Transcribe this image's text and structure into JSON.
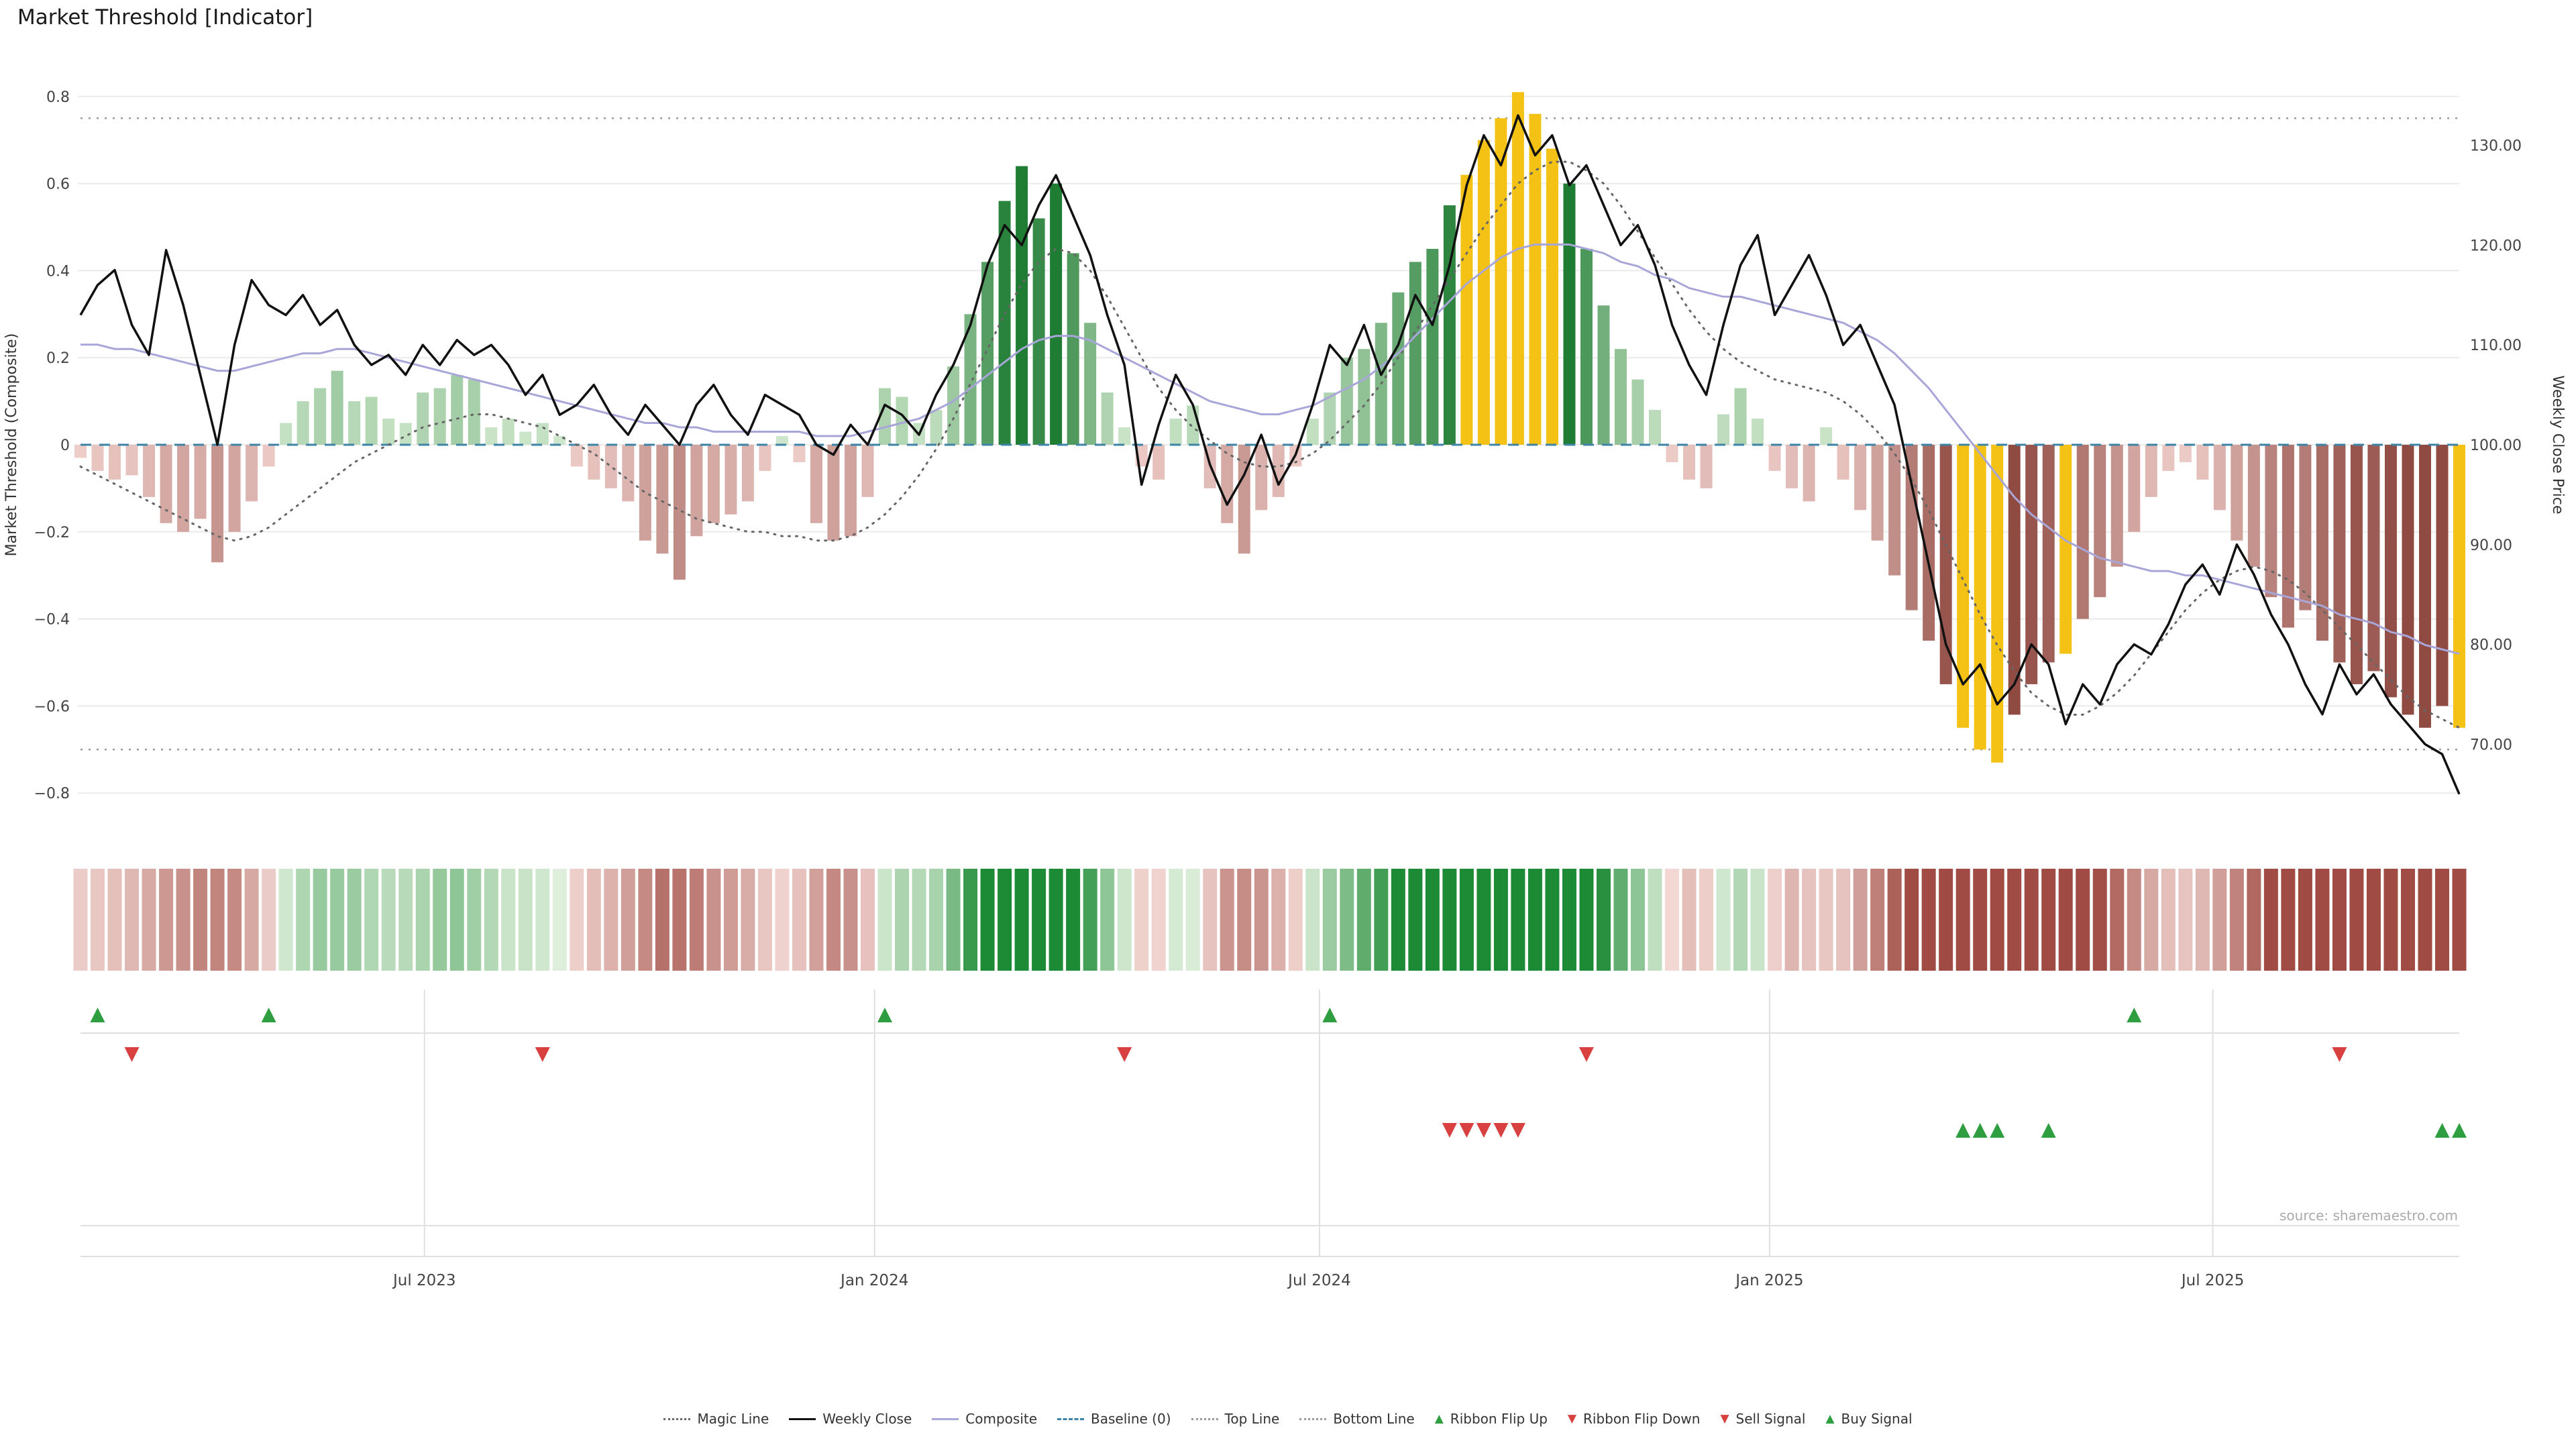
{
  "title": "Market Threshold [Indicator]",
  "source_note": "source: sharemaestro.com",
  "colors": {
    "close_line": "#111111",
    "composite_line": "#a8a6d8",
    "magic_line": "#666666",
    "baseline": "#3d85a8",
    "top_bottom_line": "#9a9a9a",
    "grid": "#ebebeb",
    "panel_grid": "#e0e0e0",
    "green_light": "#d4ead0",
    "green_dark": "#1e7c33",
    "red_light": "#f3d3cf",
    "red_dark": "#8f4a42",
    "gold": "#f3c214",
    "ribbon_green_light": "#e2f1de",
    "ribbon_green_dark": "#1d8a35",
    "ribbon_red_light": "#f6ddd9",
    "ribbon_red_dark": "#a04c44",
    "signal_green": "#2f9e41",
    "signal_red": "#d94040",
    "axis_text": "#333333",
    "tick_text": "#444444"
  },
  "legend": [
    {
      "label": "Magic Line",
      "marker": "dotted-line",
      "color": "#666666"
    },
    {
      "label": "Weekly Close",
      "marker": "solid-line",
      "color": "#111111"
    },
    {
      "label": "Composite",
      "marker": "solid-line",
      "color": "#a8a6d8"
    },
    {
      "label": "Baseline (0)",
      "marker": "dashed-line",
      "color": "#3d85a8"
    },
    {
      "label": "Top Line",
      "marker": "dotted-line",
      "color": "#9a9a9a"
    },
    {
      "label": "Bottom Line",
      "marker": "dotted-line",
      "color": "#9a9a9a"
    },
    {
      "label": "Ribbon Flip Up",
      "marker": "triangle-up",
      "color": "#2f9e41"
    },
    {
      "label": "Ribbon Flip Down",
      "marker": "triangle-down",
      "color": "#d94040"
    },
    {
      "label": "Sell Signal",
      "marker": "triangle-down",
      "color": "#d94040"
    },
    {
      "label": "Buy Signal",
      "marker": "triangle-up",
      "color": "#2f9e41"
    }
  ],
  "chart_data": {
    "type": "mixed",
    "x_unit": "weekly",
    "title": "Market Threshold [Indicator]",
    "left_axis": {
      "label": "Market Threshold (Composite)",
      "ticks": [
        0.8,
        0.6,
        0.4,
        0.2,
        0,
        -0.2,
        -0.4,
        -0.6,
        -0.8
      ],
      "tick_labels": [
        "0.8",
        "0.6",
        "0.4",
        "0.2",
        "0",
        "−0.2",
        "−0.4",
        "−0.6",
        "−0.8"
      ]
    },
    "right_axis": {
      "label": "Weekly Close Price",
      "ticks": [
        130,
        120,
        110,
        100,
        90,
        80,
        70
      ],
      "tick_labels": [
        "130.00",
        "120.00",
        "110.00",
        "100.00",
        "90.00",
        "80.00",
        "70.00"
      ]
    },
    "x_ticks": [
      {
        "w": 20.1,
        "label": "Jul 2023"
      },
      {
        "w": 46.4,
        "label": "Jan 2024"
      },
      {
        "w": 72.4,
        "label": "Jul 2024"
      },
      {
        "w": 98.7,
        "label": "Jan 2025"
      },
      {
        "w": 124.6,
        "label": "Jul 2025"
      }
    ],
    "top_line": 0.75,
    "bottom_line": -0.7,
    "baseline": 0,
    "threshold_bars": [
      -0.03,
      -0.06,
      -0.08,
      -0.07,
      -0.12,
      -0.18,
      -0.2,
      -0.17,
      -0.27,
      -0.2,
      -0.13,
      -0.05,
      0.05,
      0.1,
      0.13,
      0.17,
      0.1,
      0.11,
      0.06,
      0.05,
      0.12,
      0.13,
      0.16,
      0.15,
      0.04,
      0.06,
      0.03,
      0.05,
      0.02,
      -0.05,
      -0.08,
      -0.1,
      -0.13,
      -0.22,
      -0.25,
      -0.31,
      -0.21,
      -0.18,
      -0.16,
      -0.13,
      -0.06,
      0.02,
      -0.04,
      -0.18,
      -0.22,
      -0.21,
      -0.12,
      0.13,
      0.11,
      0.05,
      0.08,
      0.18,
      0.3,
      0.42,
      0.56,
      0.64,
      0.52,
      0.6,
      0.44,
      0.28,
      0.12,
      0.04,
      -0.05,
      -0.08,
      0.06,
      0.09,
      -0.1,
      -0.18,
      -0.25,
      -0.15,
      -0.12,
      -0.05,
      0.06,
      0.12,
      0.2,
      0.22,
      0.28,
      0.35,
      0.42,
      0.45,
      0.55,
      0.62,
      0.7,
      0.75,
      0.81,
      0.76,
      0.68,
      0.6,
      0.45,
      0.32,
      0.22,
      0.15,
      0.08,
      -0.04,
      -0.08,
      -0.1,
      0.07,
      0.13,
      0.06,
      -0.06,
      -0.1,
      -0.13,
      0.04,
      -0.08,
      -0.15,
      -0.22,
      -0.3,
      -0.38,
      -0.45,
      -0.55,
      -0.65,
      -0.7,
      -0.73,
      -0.62,
      -0.55,
      -0.5,
      -0.48,
      -0.4,
      -0.35,
      -0.28,
      -0.2,
      -0.12,
      -0.06,
      -0.04,
      -0.08,
      -0.15,
      -0.22,
      -0.28,
      -0.35,
      -0.42,
      -0.38,
      -0.45,
      -0.5,
      -0.55,
      -0.52,
      -0.58,
      -0.62,
      -0.65,
      -0.6,
      -0.65
    ],
    "gold_bars": [
      81,
      82,
      83,
      84,
      85,
      86,
      110,
      111,
      112,
      116,
      139
    ],
    "weekly_close": [
      113,
      116,
      117.5,
      112,
      109,
      119.5,
      114,
      107,
      100,
      110,
      116.5,
      114,
      113,
      115,
      112,
      113.5,
      110,
      108,
      109,
      107,
      110,
      108,
      110.5,
      109,
      110,
      108,
      105,
      107,
      103,
      104,
      106,
      103,
      101,
      104,
      102,
      100,
      104,
      106,
      103,
      101,
      105,
      104,
      103,
      100,
      99,
      102,
      100,
      104,
      103,
      101,
      105,
      108,
      112,
      118,
      122,
      120,
      124,
      127,
      123,
      119,
      113,
      108,
      96,
      102,
      107,
      104,
      98,
      94,
      97,
      101,
      96,
      99,
      104,
      110,
      108,
      112,
      107,
      110,
      115,
      112,
      118,
      126,
      131,
      128,
      133,
      129,
      131,
      126,
      128,
      124,
      120,
      122,
      118,
      112,
      108,
      105,
      112,
      118,
      121,
      113,
      116,
      119,
      115,
      110,
      112,
      108,
      104,
      96,
      88,
      80,
      76,
      78,
      74,
      76,
      80,
      78,
      72,
      76,
      74,
      78,
      80,
      79,
      82,
      86,
      88,
      85,
      90,
      87,
      83,
      80,
      76,
      73,
      78,
      75,
      77,
      74,
      72,
      70,
      69,
      65
    ],
    "composite": [
      0.23,
      0.23,
      0.22,
      0.22,
      0.21,
      0.2,
      0.19,
      0.18,
      0.17,
      0.17,
      0.18,
      0.19,
      0.2,
      0.21,
      0.21,
      0.22,
      0.22,
      0.21,
      0.2,
      0.19,
      0.18,
      0.17,
      0.16,
      0.15,
      0.14,
      0.13,
      0.12,
      0.11,
      0.1,
      0.09,
      0.08,
      0.07,
      0.06,
      0.05,
      0.05,
      0.04,
      0.04,
      0.03,
      0.03,
      0.03,
      0.03,
      0.03,
      0.03,
      0.02,
      0.02,
      0.02,
      0.03,
      0.04,
      0.05,
      0.06,
      0.08,
      0.1,
      0.13,
      0.16,
      0.19,
      0.22,
      0.24,
      0.25,
      0.25,
      0.24,
      0.22,
      0.2,
      0.18,
      0.16,
      0.14,
      0.12,
      0.1,
      0.09,
      0.08,
      0.07,
      0.07,
      0.08,
      0.09,
      0.11,
      0.13,
      0.15,
      0.18,
      0.21,
      0.25,
      0.29,
      0.33,
      0.37,
      0.4,
      0.43,
      0.45,
      0.46,
      0.46,
      0.46,
      0.45,
      0.44,
      0.42,
      0.41,
      0.39,
      0.38,
      0.36,
      0.35,
      0.34,
      0.34,
      0.33,
      0.32,
      0.31,
      0.3,
      0.29,
      0.28,
      0.26,
      0.24,
      0.21,
      0.17,
      0.13,
      0.08,
      0.03,
      -0.02,
      -0.07,
      -0.12,
      -0.16,
      -0.19,
      -0.22,
      -0.24,
      -0.26,
      -0.27,
      -0.28,
      -0.29,
      -0.29,
      -0.3,
      -0.3,
      -0.31,
      -0.32,
      -0.33,
      -0.34,
      -0.35,
      -0.36,
      -0.37,
      -0.39,
      -0.4,
      -0.41,
      -0.43,
      -0.44,
      -0.46,
      -0.47,
      -0.48
    ],
    "magic_line": [
      -0.05,
      -0.07,
      -0.09,
      -0.11,
      -0.13,
      -0.15,
      -0.17,
      -0.19,
      -0.21,
      -0.22,
      -0.21,
      -0.19,
      -0.16,
      -0.13,
      -0.1,
      -0.07,
      -0.04,
      -0.02,
      0.0,
      0.02,
      0.04,
      0.05,
      0.06,
      0.07,
      0.07,
      0.06,
      0.05,
      0.04,
      0.02,
      0.0,
      -0.02,
      -0.05,
      -0.08,
      -0.11,
      -0.13,
      -0.15,
      -0.17,
      -0.18,
      -0.19,
      -0.2,
      -0.2,
      -0.21,
      -0.21,
      -0.22,
      -0.22,
      -0.21,
      -0.19,
      -0.16,
      -0.12,
      -0.07,
      -0.01,
      0.06,
      0.14,
      0.22,
      0.3,
      0.37,
      0.42,
      0.45,
      0.44,
      0.4,
      0.34,
      0.27,
      0.2,
      0.13,
      0.08,
      0.04,
      0.01,
      -0.02,
      -0.04,
      -0.05,
      -0.05,
      -0.04,
      -0.02,
      0.01,
      0.05,
      0.09,
      0.14,
      0.2,
      0.26,
      0.32,
      0.38,
      0.44,
      0.5,
      0.55,
      0.6,
      0.63,
      0.65,
      0.65,
      0.63,
      0.6,
      0.55,
      0.49,
      0.43,
      0.37,
      0.31,
      0.26,
      0.22,
      0.19,
      0.17,
      0.15,
      0.14,
      0.13,
      0.12,
      0.1,
      0.07,
      0.03,
      -0.02,
      -0.08,
      -0.15,
      -0.23,
      -0.31,
      -0.39,
      -0.46,
      -0.52,
      -0.57,
      -0.6,
      -0.62,
      -0.62,
      -0.6,
      -0.57,
      -0.53,
      -0.48,
      -0.43,
      -0.38,
      -0.34,
      -0.31,
      -0.29,
      -0.28,
      -0.29,
      -0.31,
      -0.34,
      -0.38,
      -0.42,
      -0.46,
      -0.5,
      -0.54,
      -0.58,
      -0.61,
      -0.63,
      -0.65
    ],
    "signals": {
      "ribbon_flip_up": [
        1,
        11,
        47,
        73,
        120
      ],
      "ribbon_flip_down": [
        3,
        27,
        61,
        88,
        132
      ],
      "sell": [
        80,
        81,
        82,
        83,
        84
      ],
      "buy": [
        110,
        111,
        112,
        115,
        138,
        139
      ]
    }
  }
}
